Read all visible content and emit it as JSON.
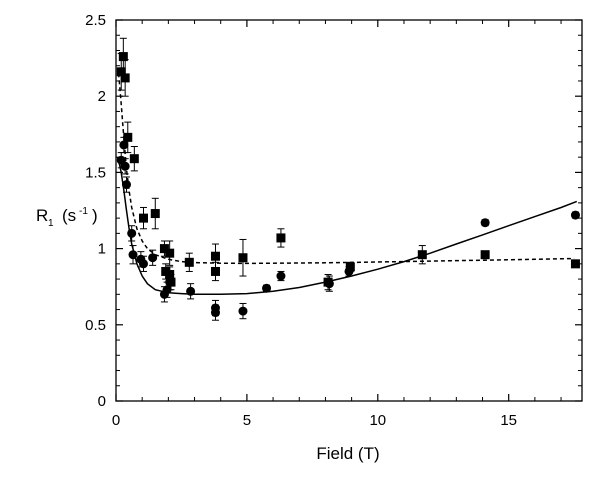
{
  "chart_data": {
    "type": "scatter",
    "xlabel": "Field (T)",
    "ylabel": "R",
    "ylabel_sub": "1",
    "ylabel_unit_open": "(s",
    "ylabel_unit_sup": "-1",
    "ylabel_unit_close": ")",
    "xlim": [
      0,
      17.8
    ],
    "ylim": [
      0,
      2.5
    ],
    "xticks": [
      0,
      5,
      10,
      15
    ],
    "yticks": [
      0,
      0.5,
      1,
      1.5,
      2,
      2.5
    ],
    "xtick_labels": [
      "0",
      "5",
      "10",
      "15"
    ],
    "ytick_labels": [
      "0",
      "0.5",
      "1",
      "1.5",
      "2",
      "2.5"
    ],
    "grid": false,
    "series": [
      {
        "marker": "square",
        "points": [
          {
            "x": 0.2,
            "y": 2.16,
            "err": 0.12
          },
          {
            "x": 0.28,
            "y": 2.26,
            "err": 0.12
          },
          {
            "x": 0.35,
            "y": 2.12,
            "err": 0.12
          },
          {
            "x": 0.45,
            "y": 1.73,
            "err": 0.1
          },
          {
            "x": 0.7,
            "y": 1.59,
            "err": 0.08
          },
          {
            "x": 1.05,
            "y": 1.2,
            "err": 0.07
          },
          {
            "x": 1.5,
            "y": 1.23,
            "err": 0.1
          },
          {
            "x": 1.85,
            "y": 1.0,
            "err": 0.05
          },
          {
            "x": 1.9,
            "y": 0.85,
            "err": 0.05
          },
          {
            "x": 2.05,
            "y": 0.97,
            "err": 0.08
          },
          {
            "x": 2.05,
            "y": 0.83,
            "err": 0.05
          },
          {
            "x": 2.1,
            "y": 0.78,
            "err": 0.05
          },
          {
            "x": 2.8,
            "y": 0.91,
            "err": 0.06
          },
          {
            "x": 3.8,
            "y": 0.95,
            "err": 0.08
          },
          {
            "x": 3.8,
            "y": 0.85,
            "err": 0.06
          },
          {
            "x": 4.85,
            "y": 0.94,
            "err": 0.12
          },
          {
            "x": 6.3,
            "y": 1.07,
            "err": 0.06
          },
          {
            "x": 8.1,
            "y": 0.78,
            "err": 0.05
          },
          {
            "x": 8.95,
            "y": 0.88,
            "err": 0.03
          },
          {
            "x": 11.7,
            "y": 0.96,
            "err": 0.06
          },
          {
            "x": 14.1,
            "y": 0.96,
            "err": 0.02
          },
          {
            "x": 17.55,
            "y": 0.9,
            "err": 0.02
          }
        ]
      },
      {
        "marker": "circle",
        "points": [
          {
            "x": 0.2,
            "y": 1.58,
            "err": 0.05
          },
          {
            "x": 0.3,
            "y": 1.68,
            "err": 0.05
          },
          {
            "x": 0.35,
            "y": 1.54,
            "err": 0.05
          },
          {
            "x": 0.4,
            "y": 1.42,
            "err": 0.05
          },
          {
            "x": 0.6,
            "y": 1.1,
            "err": 0.05
          },
          {
            "x": 0.65,
            "y": 0.96,
            "err": 0.06
          },
          {
            "x": 0.95,
            "y": 0.93,
            "err": 0.05
          },
          {
            "x": 1.05,
            "y": 0.9,
            "err": 0.05
          },
          {
            "x": 1.4,
            "y": 0.94,
            "err": 0.05
          },
          {
            "x": 1.85,
            "y": 0.7,
            "err": 0.05
          },
          {
            "x": 1.95,
            "y": 0.73,
            "err": 0.05
          },
          {
            "x": 2.05,
            "y": 0.78,
            "err": 0.05
          },
          {
            "x": 2.85,
            "y": 0.72,
            "err": 0.05
          },
          {
            "x": 3.8,
            "y": 0.61,
            "err": 0.05
          },
          {
            "x": 3.8,
            "y": 0.58,
            "err": 0.05
          },
          {
            "x": 4.85,
            "y": 0.59,
            "err": 0.05
          },
          {
            "x": 5.75,
            "y": 0.74,
            "err": 0.02
          },
          {
            "x": 6.3,
            "y": 0.82,
            "err": 0.03
          },
          {
            "x": 8.15,
            "y": 0.77,
            "err": 0.05
          },
          {
            "x": 8.9,
            "y": 0.85,
            "err": 0.03
          },
          {
            "x": 14.1,
            "y": 1.17,
            "err": 0.02
          },
          {
            "x": 17.55,
            "y": 1.22,
            "err": 0.02
          }
        ]
      }
    ],
    "fit_lines": [
      {
        "style": "dashed",
        "x": [
          0.1,
          0.2,
          0.3,
          0.4,
          0.5,
          0.6,
          0.8,
          1.0,
          1.2,
          1.5,
          2.0,
          2.5,
          3,
          4,
          5,
          6,
          8,
          10,
          12,
          14,
          16,
          17.5
        ],
        "y": [
          2.15,
          1.95,
          1.72,
          1.52,
          1.38,
          1.27,
          1.13,
          1.05,
          1.0,
          0.96,
          0.93,
          0.915,
          0.908,
          0.904,
          0.903,
          0.904,
          0.907,
          0.912,
          0.918,
          0.924,
          0.93,
          0.935
        ]
      },
      {
        "style": "solid",
        "x": [
          0.05,
          0.1,
          0.2,
          0.3,
          0.4,
          0.5,
          0.6,
          0.8,
          1.0,
          1.2,
          1.5,
          2.0,
          2.5,
          3,
          3.5,
          4,
          5,
          6,
          7,
          8,
          9,
          10,
          11,
          12,
          13,
          14,
          15,
          16,
          17,
          17.6
        ],
        "y": [
          1.6,
          1.58,
          1.5,
          1.38,
          1.25,
          1.13,
          1.03,
          0.9,
          0.82,
          0.77,
          0.73,
          0.71,
          0.705,
          0.7,
          0.7,
          0.7,
          0.705,
          0.72,
          0.745,
          0.78,
          0.82,
          0.865,
          0.915,
          0.97,
          1.03,
          1.09,
          1.15,
          1.21,
          1.27,
          1.31
        ]
      }
    ]
  }
}
